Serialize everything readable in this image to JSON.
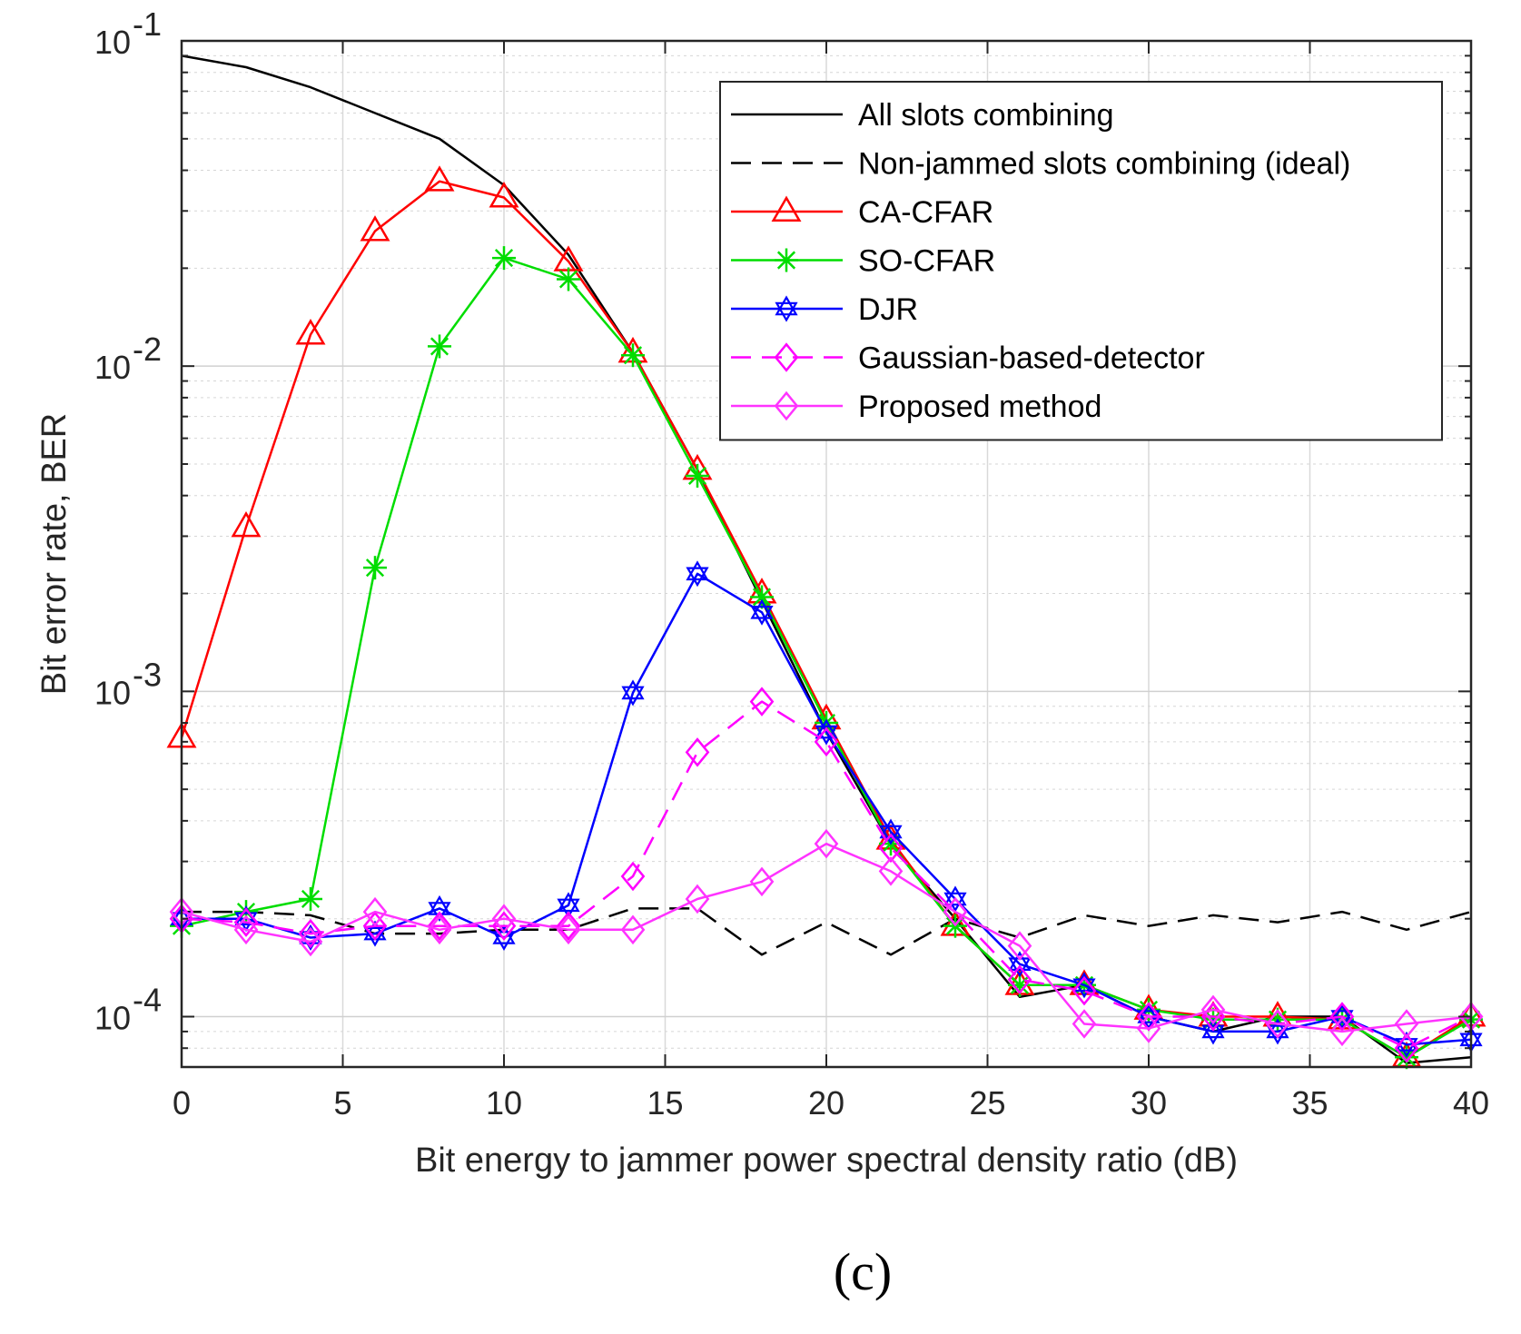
{
  "chart_data": {
    "type": "line",
    "title": "",
    "caption": "(c)",
    "xlabel": "Bit energy to jammer power spectral density ratio (dB)",
    "ylabel": "Bit error rate, BER",
    "xlim": [
      0,
      40
    ],
    "ylim": [
      7e-05,
      0.1
    ],
    "yscale": "log",
    "grid": true,
    "legend_position": "top-right",
    "x_ticks": [
      0,
      5,
      10,
      15,
      20,
      25,
      30,
      35,
      40
    ],
    "x_tick_labels": [
      "0",
      "5",
      "10",
      "15",
      "20",
      "25",
      "30",
      "35",
      "40"
    ],
    "y_ticks": [
      0.0001,
      0.001,
      0.01,
      0.1
    ],
    "y_tick_bases": [
      "10",
      "10",
      "10",
      "10"
    ],
    "y_tick_exponents": [
      "-4",
      "-3",
      "-2",
      "-1"
    ],
    "series": [
      {
        "name": "All slots combining",
        "color": "#000000",
        "dash": "solid",
        "marker": "none",
        "x": [
          0,
          2,
          4,
          6,
          8,
          10,
          12,
          14,
          16,
          18,
          20,
          22,
          24,
          26,
          28,
          30,
          32,
          34,
          36,
          38,
          40
        ],
        "y": [
          0.09,
          0.083,
          0.072,
          0.06,
          0.05,
          0.036,
          0.022,
          0.011,
          0.0048,
          0.0019,
          0.00075,
          0.00034,
          0.0002,
          0.000115,
          0.000125,
          0.0001,
          9e-05,
          0.0001,
          0.0001,
          7.2e-05,
          7.5e-05
        ]
      },
      {
        "name": "Non-jammed slots combining (ideal)",
        "color": "#000000",
        "dash": "dashed",
        "marker": "none",
        "x": [
          0,
          2,
          4,
          6,
          8,
          10,
          12,
          14,
          16,
          18,
          20,
          22,
          24,
          26,
          28,
          30,
          32,
          34,
          36,
          38,
          40
        ],
        "y": [
          0.00021,
          0.00021,
          0.000205,
          0.00018,
          0.00018,
          0.000185,
          0.000185,
          0.000215,
          0.000215,
          0.000155,
          0.000195,
          0.000155,
          0.0002,
          0.000175,
          0.000205,
          0.00019,
          0.000205,
          0.000195,
          0.00021,
          0.000185,
          0.00021
        ]
      },
      {
        "name": "CA-CFAR",
        "color": "#ff0000",
        "dash": "solid",
        "marker": "triangle",
        "x": [
          0,
          2,
          4,
          6,
          8,
          10,
          12,
          14,
          16,
          18,
          20,
          22,
          24,
          26,
          28,
          30,
          32,
          34,
          36,
          38,
          40
        ],
        "y": [
          0.00072,
          0.0032,
          0.0125,
          0.026,
          0.037,
          0.033,
          0.021,
          0.011,
          0.0048,
          0.002,
          0.00082,
          0.00035,
          0.00019,
          0.000125,
          0.000125,
          0.000105,
          0.0001,
          0.0001,
          9.8e-05,
          7.5e-05,
          0.0001
        ]
      },
      {
        "name": "SO-CFAR",
        "color": "#00dd00",
        "dash": "solid",
        "marker": "asterisk",
        "x": [
          0,
          2,
          4,
          6,
          8,
          10,
          12,
          14,
          16,
          18,
          20,
          22,
          24,
          26,
          28,
          30,
          32,
          34,
          36,
          38,
          40
        ],
        "y": [
          0.00019,
          0.00021,
          0.00023,
          0.0024,
          0.0115,
          0.0215,
          0.0185,
          0.0108,
          0.0046,
          0.00195,
          0.0008,
          0.00034,
          0.00019,
          0.000125,
          0.000125,
          0.000105,
          9.8e-05,
          9.8e-05,
          9.8e-05,
          7.5e-05,
          9.8e-05
        ]
      },
      {
        "name": "DJR",
        "color": "#0000ff",
        "dash": "solid",
        "marker": "hexagram",
        "x": [
          0,
          2,
          4,
          6,
          8,
          10,
          12,
          14,
          16,
          18,
          20,
          22,
          24,
          26,
          28,
          30,
          32,
          34,
          36,
          38,
          40
        ],
        "y": [
          0.0002,
          0.0002,
          0.000175,
          0.00018,
          0.000215,
          0.000175,
          0.00022,
          0.00099,
          0.0023,
          0.00175,
          0.00075,
          0.00037,
          0.00023,
          0.000145,
          0.000125,
          0.0001,
          9e-05,
          9e-05,
          0.0001,
          8.2e-05,
          8.5e-05
        ]
      },
      {
        "name": "Gaussian-based-detector",
        "color": "#ff00ff",
        "dash": "dashed",
        "marker": "diamond",
        "x": [
          0,
          2,
          4,
          6,
          8,
          10,
          12,
          14,
          16,
          18,
          20,
          22,
          24,
          26,
          28,
          30,
          32,
          34,
          36,
          38,
          40
        ],
        "y": [
          0.0002,
          0.000195,
          0.00018,
          0.00019,
          0.00019,
          0.00019,
          0.00019,
          0.00027,
          0.00065,
          0.00093,
          0.0007,
          0.00033,
          0.00021,
          0.00013,
          0.00012,
          0.0001,
          0.0001,
          9.5e-05,
          0.0001,
          8e-05,
          0.0001
        ]
      },
      {
        "name": "Proposed method",
        "color": "#ff33ff",
        "dash": "solid",
        "marker": "diamond",
        "x": [
          0,
          2,
          4,
          6,
          8,
          10,
          12,
          14,
          16,
          18,
          20,
          22,
          24,
          26,
          28,
          30,
          32,
          34,
          36,
          38,
          40
        ],
        "y": [
          0.00021,
          0.000185,
          0.00017,
          0.00021,
          0.000185,
          0.0002,
          0.000185,
          0.000185,
          0.00023,
          0.00026,
          0.00034,
          0.00028,
          0.00021,
          0.000165,
          9.5e-05,
          9.2e-05,
          0.000105,
          9.5e-05,
          9e-05,
          9.5e-05,
          0.0001
        ]
      }
    ]
  }
}
